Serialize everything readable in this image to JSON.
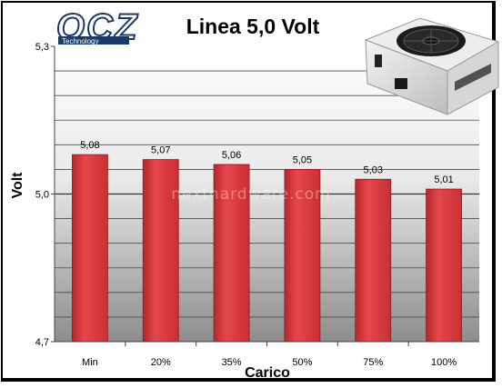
{
  "chart_data": {
    "type": "bar",
    "title": "Linea 5,0 Volt",
    "xlabel": "Carico",
    "ylabel": "Volt",
    "categories": [
      "Min",
      "20%",
      "35%",
      "50%",
      "75%",
      "100%"
    ],
    "values": [
      5.08,
      5.07,
      5.06,
      5.05,
      5.03,
      5.01
    ],
    "data_labels": [
      "5,08",
      "5,07",
      "5,06",
      "5,05",
      "5,03",
      "5,01"
    ],
    "ylim": [
      4.7,
      5.3
    ],
    "yticks": [
      4.7,
      5.0,
      5.3
    ],
    "ytick_labels": [
      "4,7",
      "5,0",
      "5,3"
    ],
    "grid": true,
    "legend": "none",
    "bar_color": "#dd3b3f"
  },
  "logo": {
    "brand": "OCZ",
    "tagline": "Technology"
  },
  "watermark": "nexthardware.com"
}
